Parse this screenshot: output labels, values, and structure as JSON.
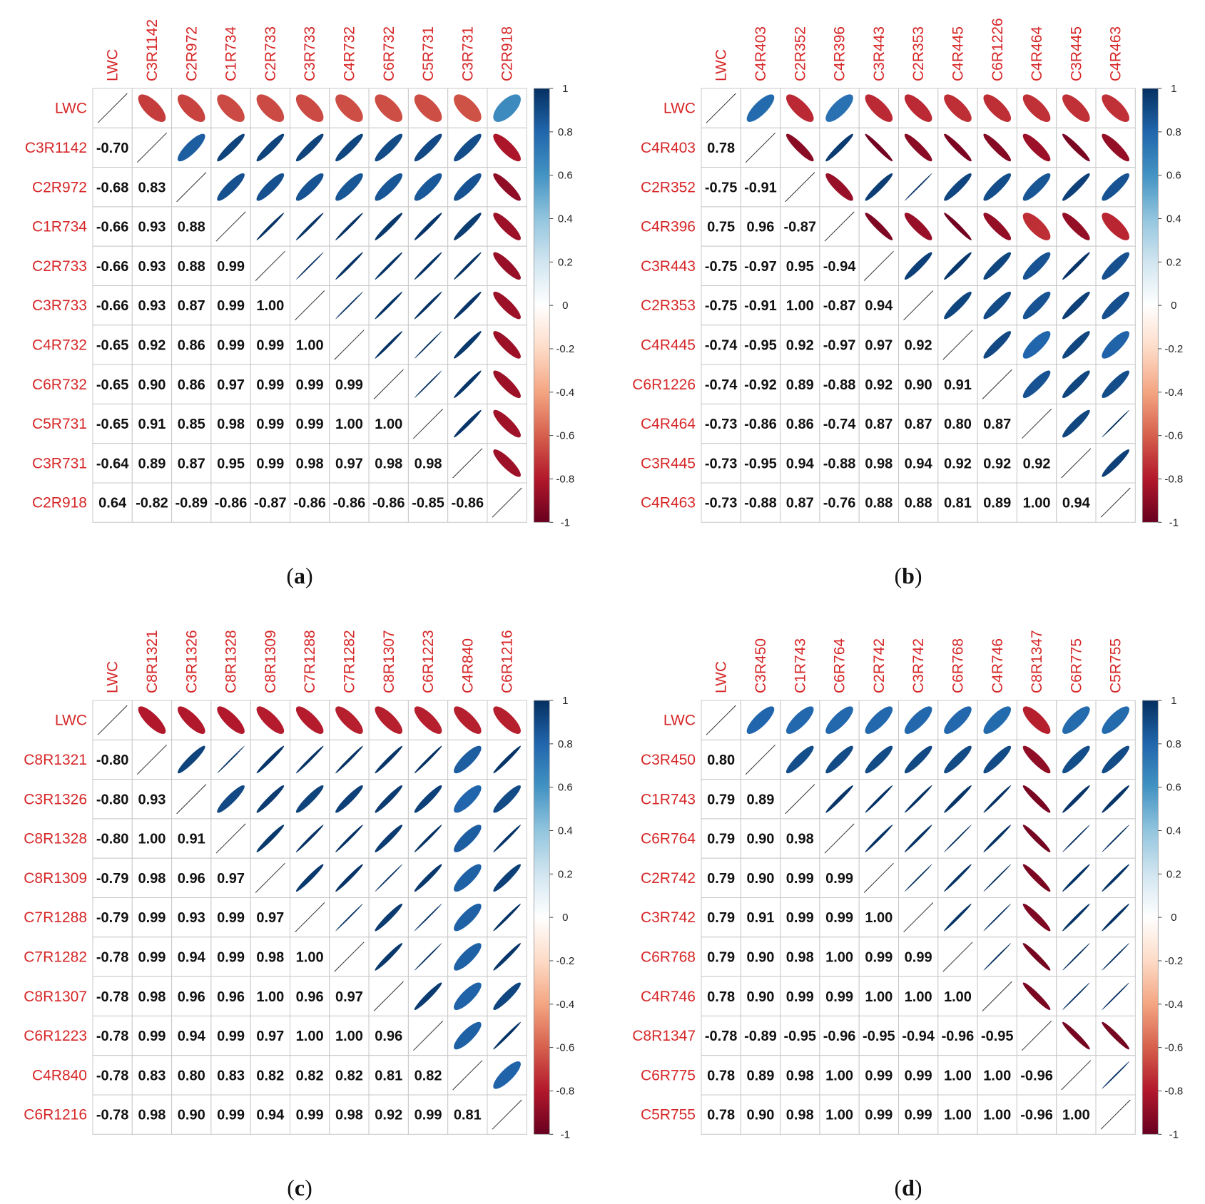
{
  "colors": {
    "label": "#d62728",
    "grid": "#c8c8c8",
    "positive_max": "#053061",
    "negative_max": "#67001f"
  },
  "colorbar_ticks": [
    "1",
    "0.8",
    "0.6",
    "0.4",
    "0.2",
    "0",
    "-0.2",
    "-0.4",
    "-0.6",
    "-0.8",
    "-1"
  ],
  "chart_data": [
    {
      "type": "heatmap",
      "panel_label": "a",
      "upper_glyph": "ellipse",
      "lower_glyph": "number",
      "variables": [
        "LWC",
        "C3R1142",
        "C2R972",
        "C1R734",
        "C2R733",
        "C3R733",
        "C4R732",
        "C6R732",
        "C5R731",
        "C3R731",
        "C2R918"
      ],
      "lower_labels": [
        [
          "-0.70"
        ],
        [
          "-0.68",
          "0.83"
        ],
        [
          "-0.66",
          "0.93",
          "0.88"
        ],
        [
          "-0.66",
          "0.93",
          "0.88",
          "0.99"
        ],
        [
          "-0.66",
          "0.93",
          "0.87",
          "0.99",
          "1.00"
        ],
        [
          "-0.65",
          "0.92",
          "0.86",
          "0.99",
          "0.99",
          "1.00"
        ],
        [
          "-0.65",
          "0.90",
          "0.86",
          "0.97",
          "0.99",
          "0.99",
          "0.99"
        ],
        [
          "-0.65",
          "0.91",
          "0.85",
          "0.98",
          "0.99",
          "0.99",
          "1.00",
          "1.00"
        ],
        [
          "-0.64",
          "0.89",
          "0.87",
          "0.95",
          "0.99",
          "0.98",
          "0.97",
          "0.98",
          "0.98"
        ],
        [
          "0.64",
          "-0.82",
          "-0.89",
          "-0.86",
          "-0.87",
          "-0.86",
          "-0.86",
          "-0.86",
          "-0.85",
          "-0.86"
        ]
      ],
      "colorbar_range": [
        -1,
        1
      ]
    },
    {
      "type": "heatmap",
      "panel_label": "b",
      "upper_glyph": "ellipse",
      "lower_glyph": "number",
      "variables": [
        "LWC",
        "C4R403",
        "C2R352",
        "C4R396",
        "C3R443",
        "C2R353",
        "C4R445",
        "C6R1226",
        "C4R464",
        "C3R445",
        "C4R463"
      ],
      "lower_labels": [
        [
          "0.78"
        ],
        [
          "-0.75",
          "-0.91"
        ],
        [
          "0.75",
          "0.96",
          "-0.87"
        ],
        [
          "-0.75",
          "-0.97",
          "0.95",
          "-0.94"
        ],
        [
          "-0.75",
          "-0.91",
          "1.00",
          "-0.87",
          "0.94"
        ],
        [
          "-0.74",
          "-0.95",
          "0.92",
          "-0.97",
          "0.97",
          "0.92"
        ],
        [
          "-0.74",
          "-0.92",
          "0.89",
          "-0.88",
          "0.92",
          "0.90",
          "0.91"
        ],
        [
          "-0.73",
          "-0.86",
          "0.86",
          "-0.74",
          "0.87",
          "0.87",
          "0.80",
          "0.87"
        ],
        [
          "-0.73",
          "-0.95",
          "0.94",
          "-0.88",
          "0.98",
          "0.94",
          "0.92",
          "0.92",
          "0.92"
        ],
        [
          "-0.73",
          "-0.88",
          "0.87",
          "-0.76",
          "0.88",
          "0.88",
          "0.81",
          "0.89",
          "1.00",
          "0.94"
        ]
      ],
      "colorbar_range": [
        -1,
        1
      ]
    },
    {
      "type": "heatmap",
      "panel_label": "c",
      "upper_glyph": "ellipse",
      "lower_glyph": "number",
      "variables": [
        "LWC",
        "C8R1321",
        "C3R1326",
        "C8R1328",
        "C8R1309",
        "C7R1288",
        "C7R1282",
        "C8R1307",
        "C6R1223",
        "C4R840",
        "C6R1216"
      ],
      "lower_labels": [
        [
          "-0.80"
        ],
        [
          "-0.80",
          "0.93"
        ],
        [
          "-0.80",
          "1.00",
          "0.91"
        ],
        [
          "-0.79",
          "0.98",
          "0.96",
          "0.97"
        ],
        [
          "-0.79",
          "0.99",
          "0.93",
          "0.99",
          "0.97"
        ],
        [
          "-0.78",
          "0.99",
          "0.94",
          "0.99",
          "0.98",
          "1.00"
        ],
        [
          "-0.78",
          "0.98",
          "0.96",
          "0.96",
          "1.00",
          "0.96",
          "0.97"
        ],
        [
          "-0.78",
          "0.99",
          "0.94",
          "0.99",
          "0.97",
          "1.00",
          "1.00",
          "0.96"
        ],
        [
          "-0.78",
          "0.83",
          "0.80",
          "0.83",
          "0.82",
          "0.82",
          "0.82",
          "0.81",
          "0.82"
        ],
        [
          "-0.78",
          "0.98",
          "0.90",
          "0.99",
          "0.94",
          "0.99",
          "0.98",
          "0.92",
          "0.99",
          "0.81"
        ]
      ],
      "colorbar_range": [
        -1,
        1
      ]
    },
    {
      "type": "heatmap",
      "panel_label": "d",
      "upper_glyph": "ellipse",
      "lower_glyph": "number",
      "variables": [
        "LWC",
        "C3R450",
        "C1R743",
        "C6R764",
        "C2R742",
        "C3R742",
        "C6R768",
        "C4R746",
        "C8R1347",
        "C6R775",
        "C5R755"
      ],
      "lower_labels": [
        [
          "0.80"
        ],
        [
          "0.79",
          "0.89"
        ],
        [
          "0.79",
          "0.90",
          "0.98"
        ],
        [
          "0.79",
          "0.90",
          "0.99",
          "0.99"
        ],
        [
          "0.79",
          "0.91",
          "0.99",
          "0.99",
          "1.00"
        ],
        [
          "0.79",
          "0.90",
          "0.98",
          "1.00",
          "0.99",
          "0.99"
        ],
        [
          "0.78",
          "0.90",
          "0.99",
          "0.99",
          "1.00",
          "1.00",
          "1.00"
        ],
        [
          "-0.78",
          "-0.89",
          "-0.95",
          "-0.96",
          "-0.95",
          "-0.94",
          "-0.96",
          "-0.95"
        ],
        [
          "0.78",
          "0.89",
          "0.98",
          "1.00",
          "0.99",
          "0.99",
          "1.00",
          "1.00",
          "-0.96"
        ],
        [
          "0.78",
          "0.90",
          "0.98",
          "1.00",
          "0.99",
          "0.99",
          "1.00",
          "1.00",
          "-0.96",
          "1.00"
        ]
      ],
      "colorbar_range": [
        -1,
        1
      ]
    }
  ]
}
